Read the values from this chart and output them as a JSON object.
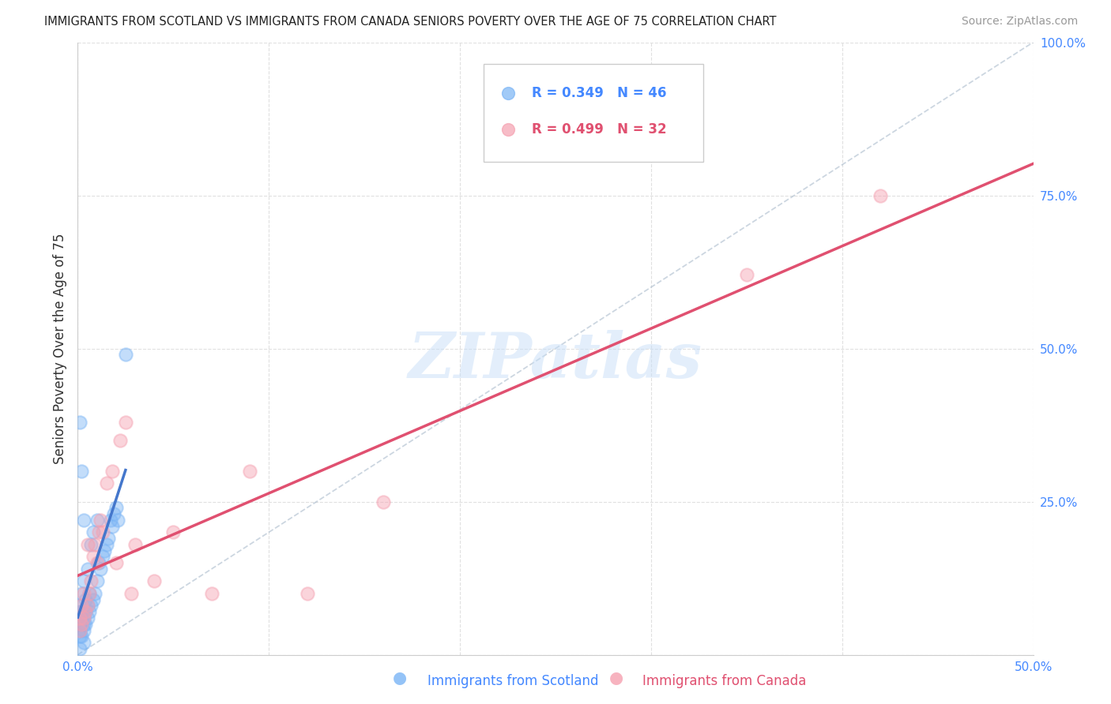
{
  "title": "IMMIGRANTS FROM SCOTLAND VS IMMIGRANTS FROM CANADA SENIORS POVERTY OVER THE AGE OF 75 CORRELATION CHART",
  "source": "Source: ZipAtlas.com",
  "ylabel": "Seniors Poverty Over the Age of 75",
  "xlim": [
    0.0,
    0.5
  ],
  "ylim": [
    0.0,
    1.0
  ],
  "xticks": [
    0.0,
    0.1,
    0.2,
    0.3,
    0.4,
    0.5
  ],
  "yticks": [
    0.0,
    0.25,
    0.5,
    0.75,
    1.0
  ],
  "xticklabels": [
    "0.0%",
    "",
    "",
    "",
    "",
    "50.0%"
  ],
  "yticklabels": [
    "",
    "25.0%",
    "50.0%",
    "75.0%",
    "100.0%"
  ],
  "scotland_color": "#7ab4f5",
  "canada_color": "#f5a0b0",
  "scotland_edge": "#5599ee",
  "canada_edge": "#e87898",
  "scotland_label": "Immigrants from Scotland",
  "canada_label": "Immigrants from Canada",
  "scotland_R": "0.349",
  "scotland_N": "46",
  "canada_R": "0.499",
  "canada_N": "32",
  "scot_x": [
    0.001,
    0.001,
    0.001,
    0.001,
    0.001,
    0.001,
    0.002,
    0.002,
    0.002,
    0.002,
    0.003,
    0.003,
    0.003,
    0.003,
    0.004,
    0.004,
    0.004,
    0.005,
    0.005,
    0.005,
    0.006,
    0.006,
    0.007,
    0.007,
    0.008,
    0.008,
    0.009,
    0.01,
    0.01,
    0.011,
    0.012,
    0.013,
    0.014,
    0.015,
    0.016,
    0.017,
    0.018,
    0.019,
    0.02,
    0.021,
    0.001,
    0.002,
    0.003,
    0.003,
    0.001,
    0.025
  ],
  "scot_y": [
    0.03,
    0.04,
    0.05,
    0.06,
    0.07,
    0.08,
    0.03,
    0.05,
    0.07,
    0.1,
    0.04,
    0.05,
    0.06,
    0.12,
    0.05,
    0.07,
    0.09,
    0.06,
    0.08,
    0.14,
    0.07,
    0.1,
    0.08,
    0.18,
    0.09,
    0.2,
    0.1,
    0.12,
    0.22,
    0.15,
    0.14,
    0.16,
    0.17,
    0.18,
    0.19,
    0.22,
    0.21,
    0.23,
    0.24,
    0.22,
    0.38,
    0.3,
    0.22,
    0.02,
    0.01,
    0.49
  ],
  "can_x": [
    0.001,
    0.001,
    0.002,
    0.002,
    0.003,
    0.003,
    0.004,
    0.005,
    0.005,
    0.006,
    0.007,
    0.008,
    0.009,
    0.01,
    0.011,
    0.012,
    0.013,
    0.015,
    0.018,
    0.02,
    0.022,
    0.025,
    0.028,
    0.03,
    0.04,
    0.05,
    0.07,
    0.09,
    0.12,
    0.16,
    0.35,
    0.42
  ],
  "can_y": [
    0.04,
    0.06,
    0.05,
    0.08,
    0.06,
    0.1,
    0.07,
    0.08,
    0.18,
    0.1,
    0.12,
    0.16,
    0.18,
    0.15,
    0.2,
    0.22,
    0.2,
    0.28,
    0.3,
    0.15,
    0.35,
    0.38,
    0.1,
    0.18,
    0.12,
    0.2,
    0.1,
    0.3,
    0.1,
    0.25,
    0.62,
    0.75
  ],
  "diag_color": "#aaaaaa",
  "reg_scot_color": "#4477cc",
  "reg_can_color": "#e05070",
  "watermark": "ZIPatlas",
  "watermark_color": "#c8dff8",
  "grid_color": "#e0e0e0",
  "background": "#ffffff",
  "title_color": "#222222",
  "source_color": "#999999",
  "axis_label_color": "#4488ff",
  "ylabel_color": "#333333"
}
